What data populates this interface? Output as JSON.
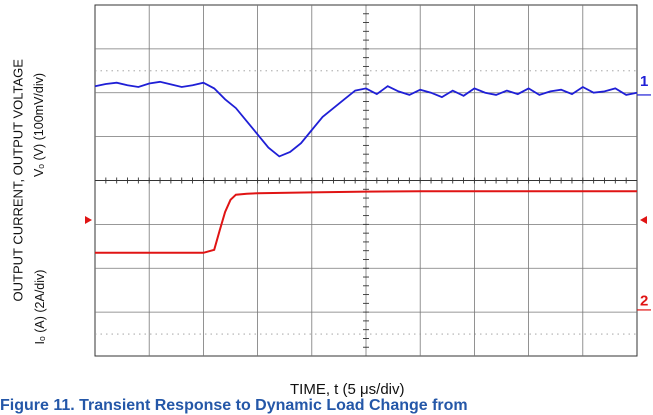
{
  "chart_data": {
    "type": "line",
    "title": "",
    "xlabel": "TIME, t (5 μs/div)",
    "ylabel": "OUTPUT CURRENT,  OUTPUT VOLTAGE",
    "channels": [
      {
        "marker": "1",
        "ylabel": "Vₒ (V) (100mV/div)",
        "color": "#1f1fd6"
      },
      {
        "marker": "2",
        "ylabel": "Iₒ (A) (2A/div)",
        "color": "#e01414"
      }
    ],
    "xlim_div": [
      0,
      10
    ],
    "ylim_div": [
      -4,
      4
    ],
    "grid": true,
    "series": [
      {
        "name": "1",
        "units": "mV",
        "x_us": [
          0,
          1,
          2,
          3,
          4,
          5,
          6,
          7,
          8,
          9,
          10,
          11,
          12,
          13,
          14,
          15,
          16,
          17,
          18,
          19,
          20,
          21,
          22,
          23,
          24,
          25,
          26,
          27,
          28,
          29,
          30,
          31,
          32,
          33,
          34,
          35,
          36,
          37,
          38,
          39,
          40,
          41,
          42,
          43,
          44,
          45,
          46,
          47,
          48,
          49,
          50
        ],
        "values": [
          60,
          65,
          68,
          62,
          58,
          66,
          70,
          64,
          58,
          62,
          68,
          55,
          30,
          10,
          -20,
          -50,
          -80,
          -100,
          -90,
          -70,
          -40,
          -10,
          10,
          30,
          50,
          55,
          42,
          60,
          48,
          40,
          52,
          45,
          35,
          50,
          38,
          55,
          45,
          40,
          50,
          42,
          55,
          40,
          48,
          52,
          42,
          58,
          45,
          48,
          55,
          40,
          45
        ]
      },
      {
        "name": "2",
        "units": "A",
        "x_us": [
          0,
          1,
          2,
          3,
          4,
          5,
          6,
          7,
          8,
          9,
          10,
          11,
          11.5,
          12,
          12.5,
          13,
          14,
          15,
          20,
          25,
          30,
          35,
          40,
          45,
          50
        ],
        "values": [
          -2.9,
          -2.9,
          -2.9,
          -2.9,
          -2.9,
          -2.9,
          -2.9,
          -2.9,
          -2.9,
          -2.9,
          -2.9,
          -2.75,
          -1.8,
          -0.9,
          -0.3,
          -0.05,
          0.0,
          0.02,
          0.06,
          0.1,
          0.12,
          0.12,
          0.12,
          0.12,
          0.12
        ]
      }
    ]
  },
  "caption": "Figure 11. Transient Response to Dynamic Load Change from"
}
